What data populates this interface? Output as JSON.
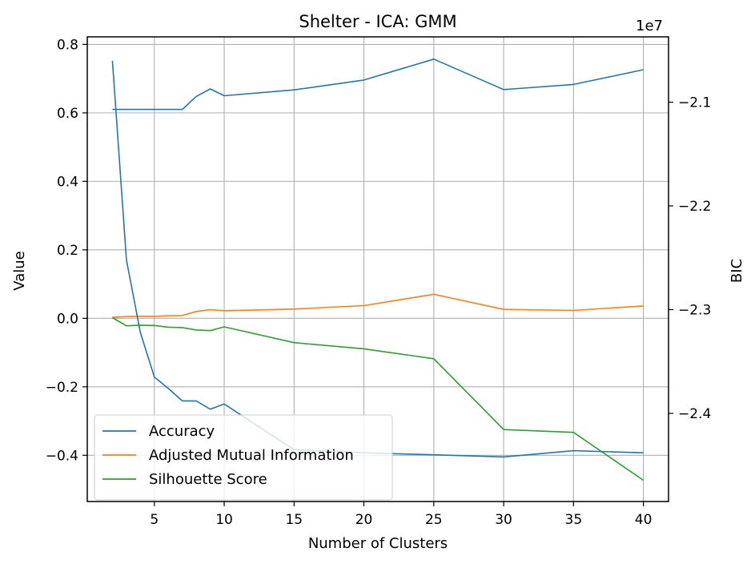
{
  "chart_data": {
    "type": "line",
    "title": "Shelter - ICA: GMM",
    "xlabel": "Number of Clusters",
    "ylabel": "Value",
    "y2label": "BIC",
    "y2_offset_label": "1e7",
    "x": [
      2,
      3,
      4,
      5,
      6,
      7,
      8,
      9,
      10,
      15,
      20,
      25,
      30,
      35,
      40
    ],
    "xlim": [
      0.2,
      41.8
    ],
    "ylim": [
      -0.535,
      0.822
    ],
    "y2lim": [
      -24.85,
      -20.37
    ],
    "xticks": [
      5,
      10,
      15,
      20,
      25,
      30,
      35,
      40
    ],
    "yticks": [
      -0.4,
      -0.2,
      0.0,
      0.2,
      0.4,
      0.6,
      0.8
    ],
    "ytick_labels": [
      "−0.4",
      "−0.2",
      "0.0",
      "0.2",
      "0.4",
      "0.6",
      "0.8"
    ],
    "y2ticks": [
      -24,
      -23,
      -22,
      -21
    ],
    "y2tick_labels": [
      "−2.4",
      "−2.3",
      "−2.2",
      "−2.1"
    ],
    "grid": true,
    "legend_position": "lower-left",
    "series": [
      {
        "name": "Accuracy",
        "axis": "left",
        "color": "#1f77b4",
        "values": [
          0.61,
          0.61,
          0.61,
          0.61,
          0.61,
          0.61,
          0.648,
          0.67,
          0.65,
          0.667,
          0.696,
          0.757,
          0.668,
          0.683,
          0.726
        ]
      },
      {
        "name": "Adjusted Mutual Information",
        "axis": "left",
        "color": "#ff7f0e",
        "values": [
          0.003,
          0.005,
          0.006,
          0.006,
          0.007,
          0.008,
          0.02,
          0.025,
          0.022,
          0.027,
          0.037,
          0.07,
          0.026,
          0.023,
          0.036
        ]
      },
      {
        "name": "Silhouette Score",
        "axis": "left",
        "color": "#2ca02c",
        "values": [
          0.002,
          -0.022,
          -0.02,
          -0.021,
          -0.026,
          -0.027,
          -0.034,
          -0.036,
          -0.025,
          -0.071,
          -0.089,
          -0.118,
          -0.325,
          -0.333,
          -0.473
        ]
      },
      {
        "name": "BIC",
        "axis": "right",
        "color": "#1f77b4",
        "values": [
          -20.6,
          -22.52,
          -23.22,
          -23.65,
          -23.76,
          -23.88,
          -23.88,
          -23.96,
          -23.91,
          -24.35,
          -24.38,
          -24.4,
          -24.42,
          -24.36,
          -24.38
        ]
      }
    ]
  }
}
